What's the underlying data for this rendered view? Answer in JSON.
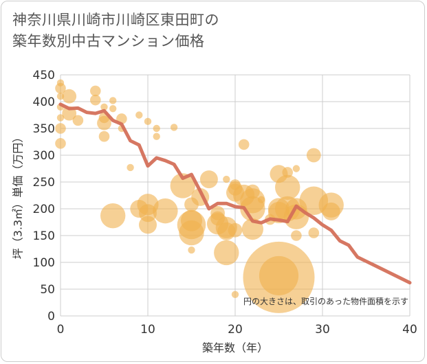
{
  "chart_data": {
    "type": "scatter",
    "title_lines": [
      "神奈川県川崎市川崎区東田町の",
      "築年数別中古マンション価格"
    ],
    "xlabel": "築年数（年）",
    "ylabel": "坪（3.3㎡）単価（万円）",
    "xlim": [
      0,
      40
    ],
    "ylim": [
      0,
      450
    ],
    "x_ticks": [
      0,
      10,
      20,
      30,
      40
    ],
    "y_ticks": [
      0,
      50,
      100,
      150,
      200,
      250,
      300,
      350,
      400,
      450
    ],
    "grid": true,
    "note": "円の大きさは、取引のあった物件面積を示す",
    "colors": {
      "bubble": "#f0b04e",
      "line": "#d4705a",
      "grid": "#cccccc"
    },
    "bubbles": [
      {
        "x": 0,
        "y": 435,
        "s": 2
      },
      {
        "x": 0,
        "y": 425,
        "s": 3
      },
      {
        "x": 0,
        "y": 410,
        "s": 2
      },
      {
        "x": 0,
        "y": 390,
        "s": 2
      },
      {
        "x": 0,
        "y": 370,
        "s": 2
      },
      {
        "x": 0,
        "y": 350,
        "s": 3
      },
      {
        "x": 0,
        "y": 322,
        "s": 3
      },
      {
        "x": 1,
        "y": 410,
        "s": 4
      },
      {
        "x": 1,
        "y": 378,
        "s": 4
      },
      {
        "x": 2,
        "y": 365,
        "s": 3
      },
      {
        "x": 4,
        "y": 420,
        "s": 3
      },
      {
        "x": 4,
        "y": 403,
        "s": 3
      },
      {
        "x": 5,
        "y": 390,
        "s": 2
      },
      {
        "x": 5,
        "y": 370,
        "s": 3
      },
      {
        "x": 5,
        "y": 360,
        "s": 4
      },
      {
        "x": 5,
        "y": 335,
        "s": 3
      },
      {
        "x": 6,
        "y": 402,
        "s": 2
      },
      {
        "x": 6,
        "y": 387,
        "s": 2
      },
      {
        "x": 7,
        "y": 368,
        "s": 3
      },
      {
        "x": 7,
        "y": 350,
        "s": 2
      },
      {
        "x": 8,
        "y": 277,
        "s": 2
      },
      {
        "x": 9,
        "y": 375,
        "s": 2
      },
      {
        "x": 10,
        "y": 363,
        "s": 2
      },
      {
        "x": 11,
        "y": 350,
        "s": 2
      },
      {
        "x": 11,
        "y": 335,
        "s": 2
      },
      {
        "x": 13,
        "y": 352,
        "s": 2
      },
      {
        "x": 6,
        "y": 187,
        "s": 7
      },
      {
        "x": 9,
        "y": 200,
        "s": 5
      },
      {
        "x": 10,
        "y": 208,
        "s": 6
      },
      {
        "x": 10,
        "y": 192,
        "s": 5
      },
      {
        "x": 10,
        "y": 170,
        "s": 5
      },
      {
        "x": 12,
        "y": 196,
        "s": 7
      },
      {
        "x": 14,
        "y": 243,
        "s": 7
      },
      {
        "x": 15,
        "y": 208,
        "s": 4
      },
      {
        "x": 15,
        "y": 178,
        "s": 6
      },
      {
        "x": 15,
        "y": 170,
        "s": 8
      },
      {
        "x": 15,
        "y": 155,
        "s": 7
      },
      {
        "x": 15,
        "y": 123,
        "s": 2
      },
      {
        "x": 16,
        "y": 222,
        "s": 5
      },
      {
        "x": 17,
        "y": 255,
        "s": 5
      },
      {
        "x": 18,
        "y": 192,
        "s": 4
      },
      {
        "x": 18,
        "y": 182,
        "s": 4
      },
      {
        "x": 18,
        "y": 172,
        "s": 6
      },
      {
        "x": 19,
        "y": 255,
        "s": 2
      },
      {
        "x": 19,
        "y": 165,
        "s": 6
      },
      {
        "x": 19,
        "y": 158,
        "s": 5
      },
      {
        "x": 19,
        "y": 118,
        "s": 7
      },
      {
        "x": 20,
        "y": 245,
        "s": 3
      },
      {
        "x": 20,
        "y": 238,
        "s": 4
      },
      {
        "x": 20,
        "y": 230,
        "s": 5
      },
      {
        "x": 20,
        "y": 160,
        "s": 4
      },
      {
        "x": 20,
        "y": 40,
        "s": 2
      },
      {
        "x": 21,
        "y": 320,
        "s": 3
      },
      {
        "x": 21,
        "y": 225,
        "s": 6
      },
      {
        "x": 22,
        "y": 215,
        "s": 7
      },
      {
        "x": 22,
        "y": 200,
        "s": 7
      },
      {
        "x": 22,
        "y": 232,
        "s": 4
      },
      {
        "x": 22,
        "y": 162,
        "s": 6
      },
      {
        "x": 23,
        "y": 217,
        "s": 2
      },
      {
        "x": 24,
        "y": 180,
        "s": 3
      },
      {
        "x": 25,
        "y": 265,
        "s": 5
      },
      {
        "x": 25,
        "y": 200,
        "s": 6
      },
      {
        "x": 25,
        "y": 193,
        "s": 6
      },
      {
        "x": 25,
        "y": 75,
        "s": 11
      },
      {
        "x": 25,
        "y": 72,
        "s": 20
      },
      {
        "x": 26,
        "y": 268,
        "s": 3
      },
      {
        "x": 26,
        "y": 240,
        "s": 7
      },
      {
        "x": 26,
        "y": 200,
        "s": 7
      },
      {
        "x": 27,
        "y": 275,
        "s": 2
      },
      {
        "x": 27,
        "y": 200,
        "s": 6
      },
      {
        "x": 27,
        "y": 185,
        "s": 7
      },
      {
        "x": 27,
        "y": 150,
        "s": 3
      },
      {
        "x": 29,
        "y": 300,
        "s": 4
      },
      {
        "x": 29,
        "y": 215,
        "s": 8
      },
      {
        "x": 29,
        "y": 155,
        "s": 3
      },
      {
        "x": 31,
        "y": 207,
        "s": 7
      },
      {
        "x": 31,
        "y": 195,
        "s": 5
      }
    ],
    "trend": {
      "x": [
        0,
        1,
        2,
        3,
        4,
        5,
        6,
        7,
        8,
        9,
        10,
        11,
        12,
        13,
        14,
        15,
        16,
        17,
        18,
        19,
        20,
        21,
        22,
        23,
        24,
        25,
        26,
        27,
        28,
        29,
        30,
        31,
        32,
        33,
        34,
        35,
        36,
        37,
        38,
        39,
        40
      ],
      "y": [
        395,
        387,
        388,
        380,
        378,
        383,
        365,
        358,
        327,
        319,
        280,
        295,
        290,
        283,
        257,
        264,
        233,
        200,
        210,
        210,
        204,
        202,
        177,
        174,
        181,
        179,
        176,
        205,
        193,
        183,
        170,
        160,
        140,
        132,
        110,
        102,
        94,
        86,
        78,
        70,
        62
      ]
    }
  }
}
